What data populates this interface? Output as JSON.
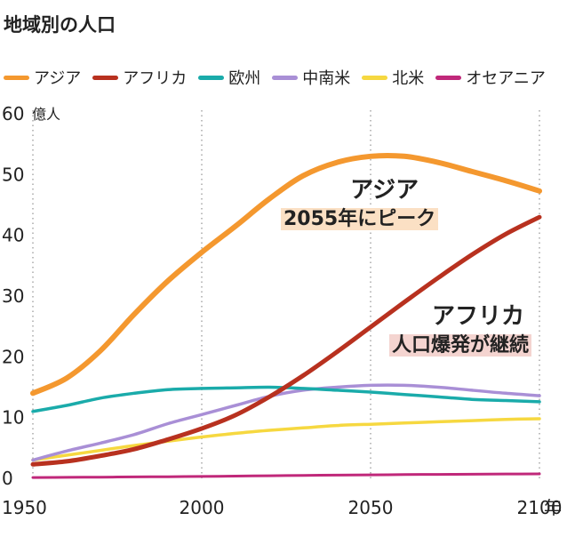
{
  "chart_data": {
    "type": "line",
    "title": "地域別の人口",
    "ylabel": "",
    "y_unit": "億人",
    "x_unit": "年",
    "xlim": [
      1950,
      2100
    ],
    "ylim": [
      0,
      60
    ],
    "y_ticks": [
      0,
      10,
      20,
      30,
      40,
      50,
      60
    ],
    "x_ticks": [
      1950,
      2000,
      2050,
      2100
    ],
    "grid": "dotted vertical lines at x ticks",
    "legend": "top",
    "series": [
      {
        "name": "アジア",
        "color": "#f4982f",
        "x": [
          1950,
          1960,
          1970,
          1980,
          1990,
          2000,
          2010,
          2020,
          2030,
          2040,
          2050,
          2060,
          2070,
          2080,
          2090,
          2100
        ],
        "values": [
          14.0,
          16.5,
          21.0,
          27.0,
          32.5,
          37.2,
          41.5,
          46.0,
          49.8,
          52.0,
          53.0,
          53.0,
          52.0,
          50.5,
          49.0,
          47.3
        ]
      },
      {
        "name": "アフリカ",
        "color": "#b8311f",
        "x": [
          1950,
          1960,
          1970,
          1980,
          1990,
          2000,
          2010,
          2020,
          2030,
          2040,
          2050,
          2060,
          2070,
          2080,
          2090,
          2100
        ],
        "values": [
          2.3,
          2.8,
          3.7,
          4.8,
          6.4,
          8.2,
          10.4,
          13.4,
          16.9,
          20.8,
          24.9,
          29.0,
          33.0,
          36.8,
          40.2,
          43.0
        ]
      },
      {
        "name": "欧州",
        "color": "#1aabaa",
        "x": [
          1950,
          1960,
          1970,
          1980,
          1990,
          2000,
          2010,
          2020,
          2030,
          2040,
          2050,
          2060,
          2070,
          2080,
          2090,
          2100
        ],
        "values": [
          11.0,
          12.0,
          13.2,
          14.0,
          14.6,
          14.8,
          14.9,
          15.0,
          14.8,
          14.5,
          14.2,
          13.8,
          13.4,
          13.0,
          12.8,
          12.6
        ]
      },
      {
        "name": "中南米",
        "color": "#a98fd6",
        "x": [
          1950,
          1960,
          1970,
          1980,
          1990,
          2000,
          2010,
          2020,
          2030,
          2040,
          2050,
          2060,
          2070,
          2080,
          2090,
          2100
        ],
        "values": [
          3.0,
          4.5,
          5.8,
          7.2,
          9.0,
          10.5,
          12.0,
          13.5,
          14.5,
          15.0,
          15.3,
          15.3,
          15.0,
          14.5,
          14.0,
          13.6
        ]
      },
      {
        "name": "北米",
        "color": "#f6d840",
        "x": [
          1950,
          1960,
          1970,
          1980,
          1990,
          2000,
          2010,
          2020,
          2030,
          2040,
          2050,
          2060,
          2070,
          2080,
          2090,
          2100
        ],
        "values": [
          3.0,
          3.8,
          4.6,
          5.4,
          6.1,
          6.8,
          7.4,
          7.9,
          8.3,
          8.7,
          8.9,
          9.1,
          9.3,
          9.5,
          9.7,
          9.8
        ]
      },
      {
        "name": "オセアニア",
        "color": "#c0287a",
        "x": [
          1950,
          1960,
          1970,
          1980,
          1990,
          2000,
          2010,
          2020,
          2030,
          2040,
          2050,
          2060,
          2070,
          2080,
          2090,
          2100
        ],
        "values": [
          0.13,
          0.16,
          0.19,
          0.23,
          0.27,
          0.31,
          0.36,
          0.43,
          0.48,
          0.53,
          0.57,
          0.61,
          0.65,
          0.68,
          0.71,
          0.73
        ]
      }
    ],
    "annotations": [
      {
        "line1": "アジア",
        "line2": "2055年にピーク",
        "highlight": "#fbe0c4"
      },
      {
        "line1": "アフリカ",
        "line2": "人口爆発が継続",
        "highlight": "#f4d4d0"
      }
    ]
  }
}
